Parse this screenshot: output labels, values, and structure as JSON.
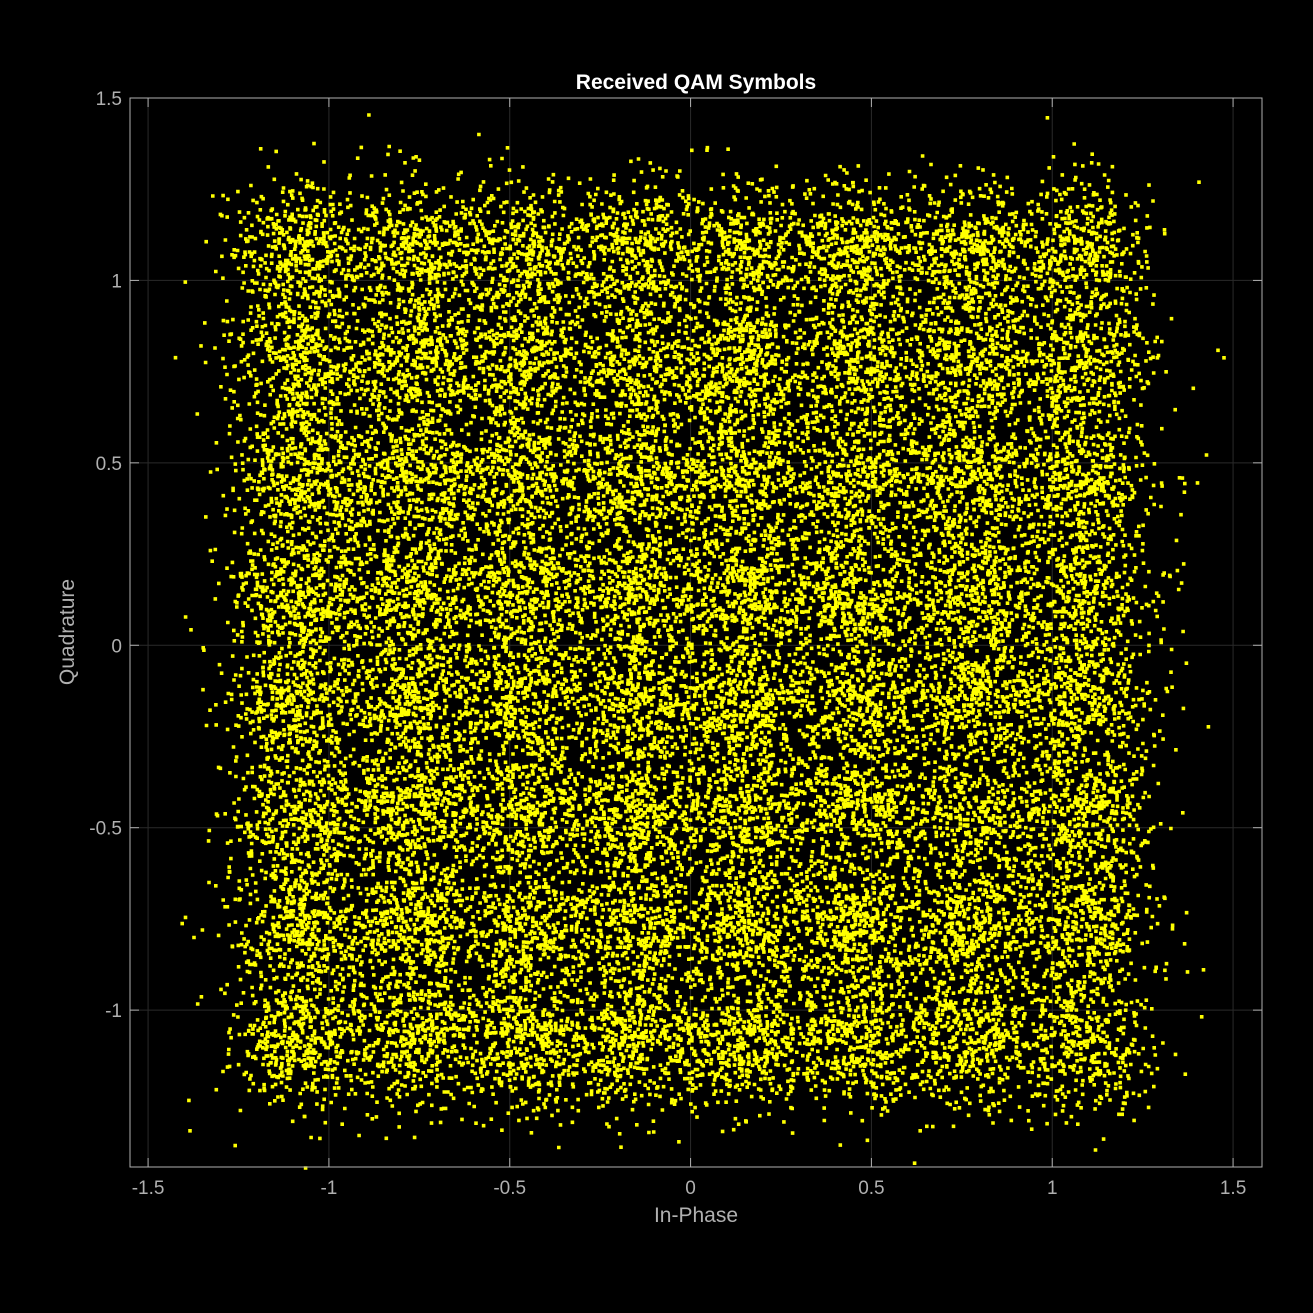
{
  "chart_data": {
    "type": "scatter",
    "title": "Received QAM Symbols",
    "xlabel": "In-Phase",
    "ylabel": "Quadrature",
    "xlim": [
      -1.55,
      1.58
    ],
    "ylim": [
      -1.43,
      1.5
    ],
    "grid": true,
    "colors": {
      "background": "#000000",
      "marker": "#ffff00",
      "axis": "#b0b0b0",
      "grid": "#2a2a2a",
      "title": "#ffffff"
    },
    "x_ticks": [
      {
        "value": -1.5,
        "label": "-1.5"
      },
      {
        "value": -1,
        "label": "-1"
      },
      {
        "value": -0.5,
        "label": "-0.5"
      },
      {
        "value": 0,
        "label": "0"
      },
      {
        "value": 0.5,
        "label": "0.5"
      },
      {
        "value": 1,
        "label": "1"
      },
      {
        "value": 1.5,
        "label": "1.5"
      }
    ],
    "y_ticks": [
      {
        "value": 1.5,
        "label": "1.5"
      },
      {
        "value": 1,
        "label": "1"
      },
      {
        "value": 0.5,
        "label": "0.5"
      },
      {
        "value": 0,
        "label": "0"
      },
      {
        "value": -0.5,
        "label": "-0.5"
      },
      {
        "value": -1,
        "label": "-1"
      }
    ],
    "series": [
      {
        "constellation": "64-QAM",
        "i_levels": [
          -1.08,
          -0.77,
          -0.46,
          -0.15,
          0.15,
          0.46,
          0.77,
          1.08
        ],
        "q_levels": [
          -1.08,
          -0.77,
          -0.46,
          -0.15,
          0.15,
          0.46,
          0.77,
          1.08
        ],
        "noise_std": 0.1,
        "point_count": 30000
      }
    ]
  }
}
